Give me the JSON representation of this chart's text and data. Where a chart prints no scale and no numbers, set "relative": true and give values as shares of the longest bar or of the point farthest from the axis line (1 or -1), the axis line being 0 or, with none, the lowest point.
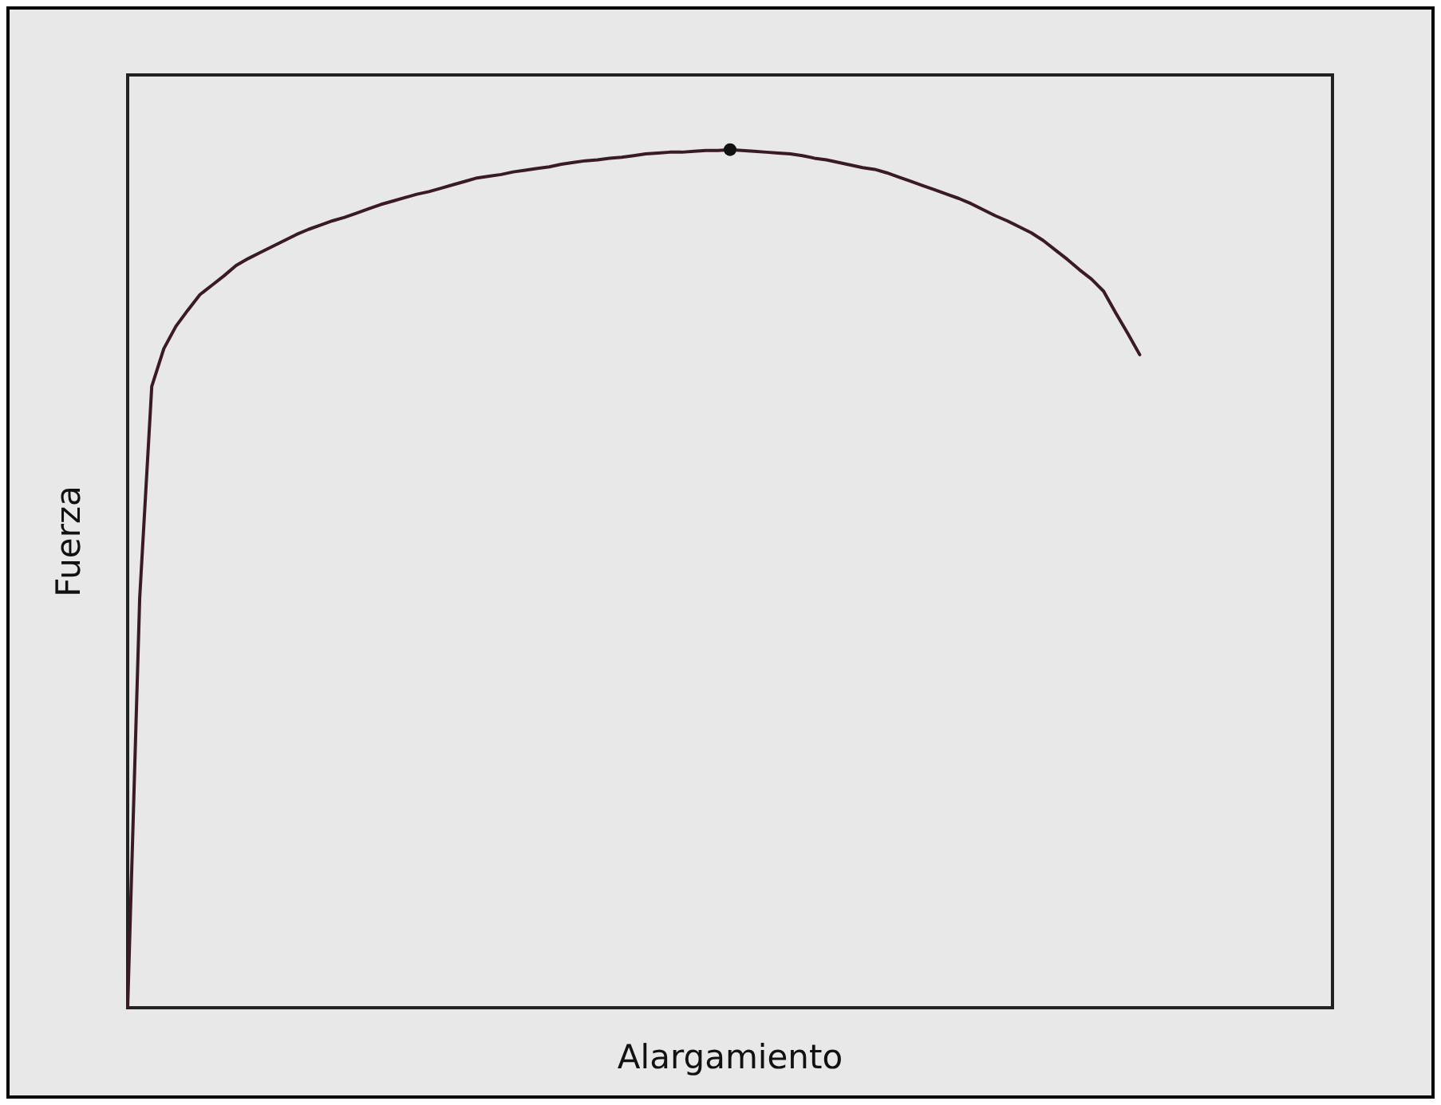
{
  "chart_data": {
    "type": "line",
    "xlabel": "Alargamiento",
    "ylabel": "Fuerza",
    "relative": true,
    "categories": [
      null,
      null,
      null,
      null,
      null,
      null,
      null,
      null,
      null,
      null,
      null,
      null,
      null,
      null,
      null,
      null,
      null,
      null,
      null,
      null,
      null,
      null,
      null,
      null,
      null,
      null,
      null,
      null,
      null,
      null,
      null,
      null,
      null,
      null,
      null,
      null,
      null,
      null,
      null,
      null,
      null,
      null,
      null,
      null,
      null,
      null,
      null,
      null,
      null,
      null,
      null,
      null,
      null,
      null,
      null,
      null,
      null,
      null,
      null,
      null,
      null,
      null,
      null,
      null,
      null,
      null,
      null,
      null,
      null,
      null,
      null,
      null,
      null,
      null,
      null,
      null,
      null,
      null,
      null,
      null,
      null,
      null,
      null,
      null,
      null,
      null,
      null,
      null,
      null,
      null,
      null,
      null,
      null,
      null,
      null,
      null,
      null,
      null,
      null,
      null,
      null
    ],
    "series": [
      {
        "color": "#3a1a24",
        "values": [
          0,
          0.478,
          0.724,
          0.768,
          0.794,
          0.813,
          0.831,
          0.842,
          0.853,
          0.865,
          0.873,
          0.88,
          0.887,
          0.894,
          0.901,
          0.907,
          0.912,
          0.917,
          0.921,
          0.926,
          0.931,
          0.936,
          0.94,
          0.944,
          0.948,
          0.951,
          0.955,
          0.959,
          0.963,
          0.967,
          0.969,
          0.971,
          0.974,
          0.976,
          0.978,
          0.98,
          0.983,
          0.985,
          0.987,
          0.988,
          0.99,
          0.991,
          0.993,
          0.995,
          0.996,
          0.997,
          0.997,
          0.998,
          0.999,
          0.999,
          1,
          0.999,
          0.998,
          0.997,
          0.996,
          0.995,
          0.993,
          0.99,
          0.988,
          0.985,
          0.982,
          0.979,
          0.977,
          0.973,
          0.968,
          0.963,
          0.958,
          0.953,
          0.948,
          0.943,
          0.937,
          0.93,
          0.923,
          0.917,
          0.91,
          0.903,
          0.894,
          0.883,
          0.872,
          0.86,
          0.849,
          0.835,
          0.81,
          0.786,
          0.761,
          null,
          null,
          null,
          null,
          null,
          null,
          null,
          null,
          null,
          null,
          null,
          null,
          null,
          null,
          null,
          null
        ]
      }
    ]
  }
}
